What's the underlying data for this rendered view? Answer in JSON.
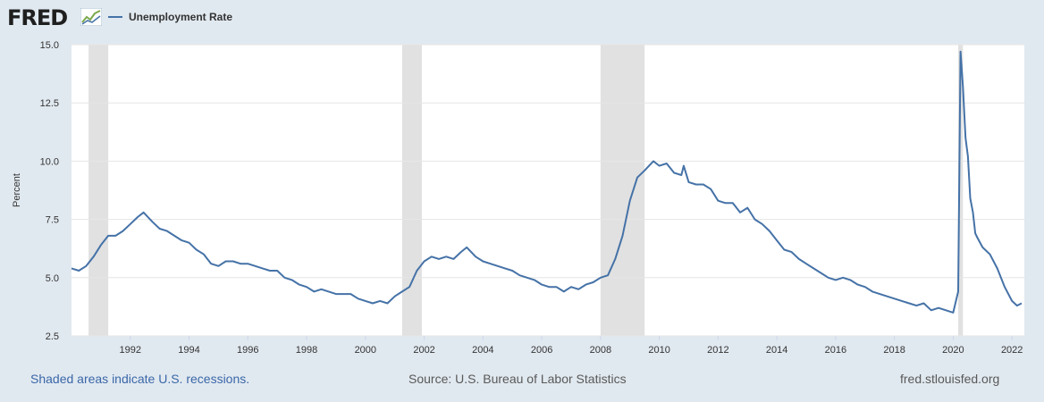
{
  "header": {
    "logo_text": "FRED",
    "logo_icon": "graph-line-icon",
    "series_label": "Unemployment Rate"
  },
  "colors": {
    "line": "#4572a7",
    "recession_shade": "#e1e1e1",
    "plot_background": "#ffffff",
    "page_background": "#e1e9f0"
  },
  "chart_data": {
    "type": "line",
    "title": "",
    "xlabel": "",
    "ylabel": "Percent",
    "xlim": [
      1990.0,
      2022.42
    ],
    "ylim": [
      2.5,
      15.0
    ],
    "y_ticks": [
      "2.5",
      "5.0",
      "7.5",
      "10.0",
      "12.5",
      "15.0"
    ],
    "x_ticks": [
      "1992",
      "1994",
      "1996",
      "1998",
      "2000",
      "2002",
      "2004",
      "2006",
      "2008",
      "2010",
      "2012",
      "2014",
      "2016",
      "2018",
      "2020",
      "2022"
    ],
    "grid": true,
    "recessions": [
      [
        1990.58,
        1991.25
      ],
      [
        2001.25,
        2001.92
      ],
      [
        2008.0,
        2009.5
      ],
      [
        2020.17,
        2020.33
      ]
    ],
    "series": [
      {
        "name": "Unemployment Rate",
        "x": [
          1990.0,
          1990.25,
          1990.5,
          1990.75,
          1991.0,
          1991.25,
          1991.5,
          1991.75,
          1992.0,
          1992.25,
          1992.45,
          1992.75,
          1993.0,
          1993.25,
          1993.5,
          1993.75,
          1994.0,
          1994.25,
          1994.5,
          1994.75,
          1995.0,
          1995.25,
          1995.5,
          1995.75,
          1996.0,
          1996.25,
          1996.5,
          1996.75,
          1997.0,
          1997.25,
          1997.5,
          1997.75,
          1998.0,
          1998.25,
          1998.5,
          1998.75,
          1999.0,
          1999.25,
          1999.5,
          1999.75,
          2000.0,
          2000.25,
          2000.5,
          2000.75,
          2001.0,
          2001.25,
          2001.5,
          2001.75,
          2002.0,
          2002.25,
          2002.5,
          2002.75,
          2003.0,
          2003.25,
          2003.45,
          2003.75,
          2004.0,
          2004.25,
          2004.5,
          2004.75,
          2005.0,
          2005.25,
          2005.5,
          2005.75,
          2006.0,
          2006.25,
          2006.5,
          2006.75,
          2007.0,
          2007.25,
          2007.5,
          2007.75,
          2008.0,
          2008.25,
          2008.5,
          2008.75,
          2009.0,
          2009.25,
          2009.5,
          2009.8,
          2010.0,
          2010.25,
          2010.5,
          2010.75,
          2010.83,
          2011.0,
          2011.25,
          2011.5,
          2011.75,
          2012.0,
          2012.25,
          2012.5,
          2012.75,
          2013.0,
          2013.25,
          2013.5,
          2013.75,
          2014.0,
          2014.25,
          2014.5,
          2014.75,
          2015.0,
          2015.25,
          2015.5,
          2015.75,
          2016.0,
          2016.25,
          2016.5,
          2016.75,
          2017.0,
          2017.25,
          2017.5,
          2017.75,
          2018.0,
          2018.25,
          2018.5,
          2018.75,
          2019.0,
          2019.25,
          2019.5,
          2019.75,
          2020.0,
          2020.17,
          2020.25,
          2020.33,
          2020.42,
          2020.5,
          2020.58,
          2020.67,
          2020.75,
          2020.83,
          2021.0,
          2021.25,
          2021.5,
          2021.75,
          2022.0,
          2022.17,
          2022.33
        ],
        "values": [
          5.4,
          5.3,
          5.5,
          5.9,
          6.4,
          6.8,
          6.8,
          7.0,
          7.3,
          7.6,
          7.8,
          7.4,
          7.1,
          7.0,
          6.8,
          6.6,
          6.5,
          6.2,
          6.0,
          5.6,
          5.5,
          5.7,
          5.7,
          5.6,
          5.6,
          5.5,
          5.4,
          5.3,
          5.3,
          5.0,
          4.9,
          4.7,
          4.6,
          4.4,
          4.5,
          4.4,
          4.3,
          4.3,
          4.3,
          4.1,
          4.0,
          3.9,
          4.0,
          3.9,
          4.2,
          4.4,
          4.6,
          5.3,
          5.7,
          5.9,
          5.8,
          5.9,
          5.8,
          6.1,
          6.3,
          5.9,
          5.7,
          5.6,
          5.5,
          5.4,
          5.3,
          5.1,
          5.0,
          4.9,
          4.7,
          4.6,
          4.6,
          4.4,
          4.6,
          4.5,
          4.7,
          4.8,
          5.0,
          5.1,
          5.8,
          6.8,
          8.3,
          9.3,
          9.6,
          10.0,
          9.8,
          9.9,
          9.5,
          9.4,
          9.8,
          9.1,
          9.0,
          9.0,
          8.8,
          8.3,
          8.2,
          8.2,
          7.8,
          8.0,
          7.5,
          7.3,
          7.0,
          6.6,
          6.2,
          6.1,
          5.8,
          5.6,
          5.4,
          5.2,
          5.0,
          4.9,
          5.0,
          4.9,
          4.7,
          4.6,
          4.4,
          4.3,
          4.2,
          4.1,
          4.0,
          3.9,
          3.8,
          3.9,
          3.6,
          3.7,
          3.6,
          3.5,
          4.4,
          14.7,
          13.2,
          11.0,
          10.2,
          8.4,
          7.8,
          6.9,
          6.7,
          6.3,
          6.0,
          5.4,
          4.6,
          4.0,
          3.8,
          3.9
        ]
      }
    ]
  },
  "footer": {
    "recession_note": "Shaded areas indicate U.S. recessions.",
    "source": "Source: U.S. Bureau of Labor Statistics",
    "site": "fred.stlouisfed.org"
  }
}
